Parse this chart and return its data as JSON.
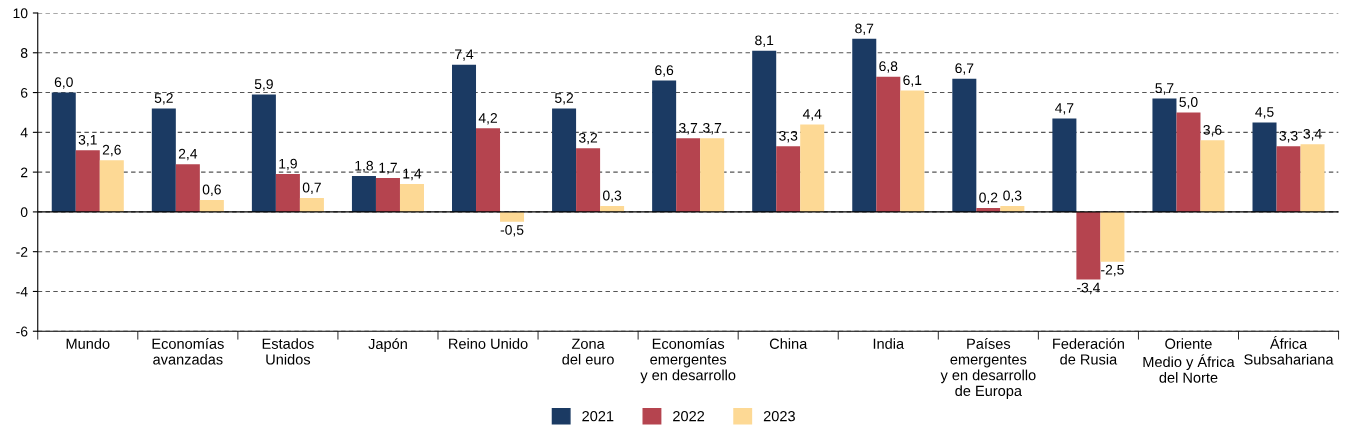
{
  "chart_data": {
    "type": "bar",
    "categories": [
      "Mundo",
      "Economías\navanzadas",
      "Estados\nUnidos",
      "Japón",
      "Reino Unido",
      "Zona\ndel euro",
      "Economías\nemergentes\ny en desarrollo",
      "China",
      "India",
      "Países\nemergentes\ny en desarrollo\nde Europa",
      "Federación\nde Rusia",
      "Oriente\nMedio y África\ndel Norte",
      "África\nSubsahariana"
    ],
    "series": [
      {
        "name": "2021",
        "color": "#1b3a63",
        "values": [
          6.0,
          5.2,
          5.9,
          1.8,
          7.4,
          5.2,
          6.6,
          8.1,
          8.7,
          6.7,
          4.7,
          5.7,
          4.5
        ],
        "value_labels": [
          "6,0",
          "5,2",
          "5,9",
          "1,8",
          "7,4",
          "5,2",
          "6,6",
          "8,1",
          "8,7",
          "6,7",
          "4,7",
          "5,7",
          "4,5"
        ]
      },
      {
        "name": "2022",
        "color": "#b5444f",
        "values": [
          3.1,
          2.4,
          1.9,
          1.7,
          4.2,
          3.2,
          3.7,
          3.3,
          6.8,
          0.2,
          -3.4,
          5.0,
          3.3
        ],
        "value_labels": [
          "3,1",
          "2,4",
          "1,9",
          "1,7",
          "4,2",
          "3,2",
          "3,7",
          "3,3",
          "6,8",
          "0,2",
          "-3,4",
          "5,0",
          "3,3"
        ]
      },
      {
        "name": "2023",
        "color": "#fdd995",
        "values": [
          2.6,
          0.6,
          0.7,
          1.4,
          -0.5,
          0.3,
          3.7,
          4.4,
          6.1,
          0.3,
          -2.5,
          3.6,
          3.4
        ],
        "value_labels": [
          "2,6",
          "0,6",
          "0,7",
          "1,4",
          "-0,5",
          "0,3",
          "3,7",
          "4,4",
          "6,1",
          "0,3",
          "-2,5",
          "3,6",
          "3,4"
        ]
      }
    ],
    "ylim": [
      -6,
      10
    ],
    "yticks": [
      -6,
      -4,
      -2,
      0,
      2,
      4,
      6,
      8,
      10
    ],
    "grid": "y",
    "line_style": "dashed",
    "ref_lines": [
      {
        "axis": "y",
        "value": 0,
        "color": "#000000",
        "line_style": "solid"
      }
    ],
    "legend": "bottom"
  }
}
